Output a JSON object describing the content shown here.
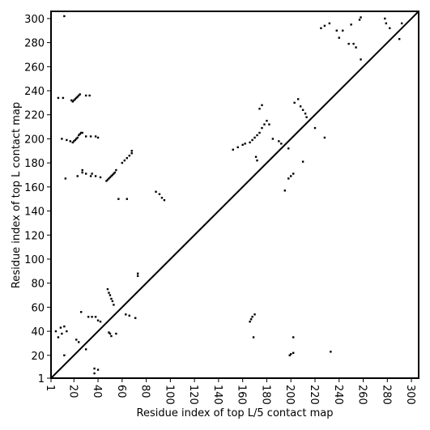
{
  "chart_data": {
    "type": "scatter",
    "xlabel": "Residue index of top L/5 contact map",
    "ylabel": "Residue index of top L contact map",
    "xlim": [
      1,
      306
    ],
    "ylim": [
      1,
      306
    ],
    "xticks": [
      1,
      20,
      40,
      60,
      80,
      100,
      120,
      140,
      160,
      180,
      200,
      220,
      240,
      260,
      280,
      300
    ],
    "yticks": [
      1,
      20,
      40,
      60,
      80,
      100,
      120,
      140,
      160,
      180,
      200,
      220,
      240,
      260,
      280,
      300
    ],
    "color": "#000000",
    "x": [
      7,
      11,
      12,
      10,
      14,
      17,
      19,
      20,
      21,
      22,
      23,
      24,
      25,
      26,
      27,
      18,
      19,
      20,
      21,
      22,
      23,
      24,
      25,
      30,
      33,
      13,
      23,
      27,
      27,
      30,
      35,
      34,
      38,
      42,
      30,
      34,
      38,
      40,
      47,
      48,
      49,
      50,
      51,
      52,
      53,
      54,
      55,
      57,
      64,
      60,
      62,
      64,
      66,
      68,
      68,
      88,
      91,
      93,
      95,
      73,
      73,
      152,
      156,
      160,
      162,
      166,
      168,
      170,
      172,
      174,
      176,
      178,
      180,
      182,
      171,
      172,
      174,
      176,
      185,
      190,
      192,
      198,
      203,
      206,
      208,
      210,
      212,
      213,
      210,
      220,
      228,
      225,
      228,
      232,
      238,
      240,
      243,
      248,
      250,
      252,
      254,
      257,
      258,
      258,
      278,
      279,
      282,
      290,
      292,
      5,
      7,
      9,
      10,
      12,
      14,
      12,
      22,
      24,
      26,
      30,
      32,
      35,
      38,
      40,
      42,
      37,
      40,
      37,
      48,
      49,
      50,
      51,
      52,
      53,
      49,
      51,
      50,
      55,
      63,
      66,
      71,
      166,
      167,
      168,
      170,
      169,
      199,
      200,
      202,
      195,
      198,
      200,
      202,
      202,
      233
    ],
    "y": [
      234,
      234,
      302,
      200,
      199,
      198,
      197,
      198,
      199,
      200,
      201,
      203,
      204,
      205,
      205,
      232,
      231,
      232,
      233,
      234,
      235,
      236,
      237,
      236,
      236,
      167,
      169,
      172,
      174,
      171,
      171,
      169,
      169,
      168,
      202,
      202,
      202,
      201,
      165,
      166,
      167,
      168,
      169,
      170,
      171,
      172,
      174,
      150,
      150,
      180,
      182,
      184,
      186,
      188,
      190,
      156,
      154,
      151,
      149,
      86,
      88,
      191,
      193,
      195,
      196,
      197,
      199,
      201,
      203,
      205,
      209,
      212,
      215,
      212,
      185,
      182,
      225,
      228,
      200,
      198,
      196,
      192,
      230,
      233,
      227,
      224,
      221,
      218,
      181,
      209,
      201,
      292,
      294,
      296,
      290,
      284,
      290,
      279,
      295,
      279,
      276,
      299,
      301,
      266,
      300,
      296,
      292,
      283,
      296,
      40,
      35,
      43,
      38,
      44,
      40,
      20,
      33,
      31,
      56,
      25,
      52,
      52,
      52,
      49,
      48,
      5,
      8,
      9,
      75,
      72,
      70,
      67,
      65,
      62,
      39,
      36,
      38,
      38,
      54,
      53,
      51,
      48,
      50,
      52,
      54,
      35,
      20,
      21,
      22,
      157,
      167,
      169,
      171,
      35,
      23
    ]
  }
}
